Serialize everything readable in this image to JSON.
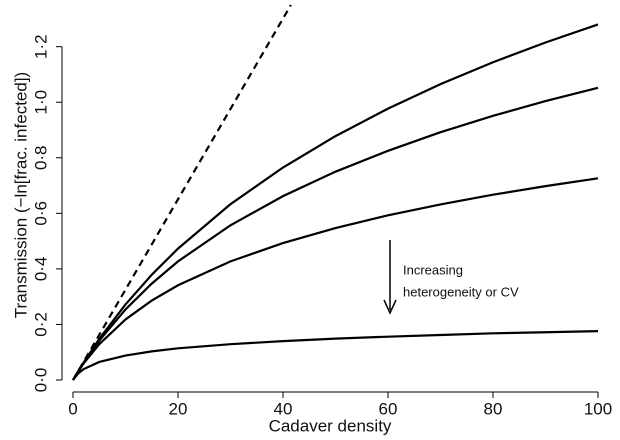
{
  "chart_data": {
    "type": "line",
    "xlabel": "Cadaver density",
    "ylabel": "Transmission (−ln[frac. infected])",
    "annotation": [
      "Increasing",
      "heterogeneity or CV"
    ],
    "x": [
      0,
      1,
      2,
      5,
      10,
      15,
      20,
      30,
      40,
      50,
      60,
      70,
      80,
      90,
      100
    ],
    "series": [
      {
        "color": "#000000",
        "values": [
          0,
          0.032,
          0.062,
          0.148,
          0.272,
          0.379,
          0.473,
          0.633,
          0.765,
          0.878,
          0.977,
          1.065,
          1.144,
          1.215,
          1.28
        ]
      },
      {
        "color": "#000000",
        "values": [
          0,
          0.032,
          0.061,
          0.142,
          0.254,
          0.347,
          0.427,
          0.557,
          0.662,
          0.75,
          0.825,
          0.892,
          0.951,
          1.004,
          1.052
        ]
      },
      {
        "color": "#000000",
        "values": [
          0,
          0.031,
          0.059,
          0.129,
          0.218,
          0.286,
          0.341,
          0.427,
          0.493,
          0.547,
          0.593,
          0.632,
          0.667,
          0.698,
          0.726
        ]
      },
      {
        "color": "#000000",
        "values": [
          0,
          0.024,
          0.039,
          0.065,
          0.088,
          0.103,
          0.114,
          0.129,
          0.14,
          0.149,
          0.156,
          0.162,
          0.168,
          0.172,
          0.176
        ]
      },
      {
        "color": "#000000",
        "dashed": true,
        "x": [
          0,
          41.5
        ],
        "values": [
          0,
          1.35
        ]
      }
    ],
    "xlim": [
      0,
      100
    ],
    "ylim": [
      0,
      1.35
    ],
    "xticks": [
      0,
      20,
      40,
      60,
      80,
      100
    ],
    "yticks": [
      {
        "value": 0,
        "label": "0·0"
      },
      {
        "value": 0.2,
        "label": "0·2"
      },
      {
        "value": 0.4,
        "label": "0·4"
      },
      {
        "value": 0.6,
        "label": "0·6"
      },
      {
        "value": 0.8,
        "label": "0·8"
      },
      {
        "value": 1.0,
        "label": "1·0"
      },
      {
        "value": 1.2,
        "label": "1·2"
      }
    ]
  }
}
